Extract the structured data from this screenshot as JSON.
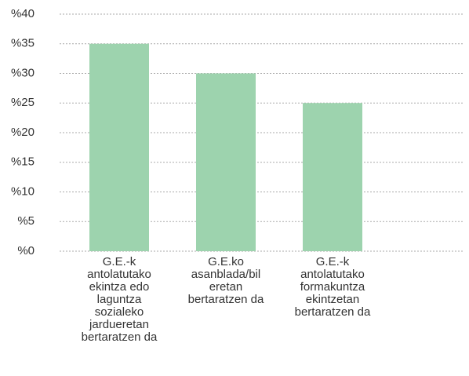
{
  "chart_data": {
    "type": "bar",
    "categories": [
      [
        "G.E.-k",
        "antolatutako",
        "ekintza edo",
        "laguntza",
        "sozialeko",
        "jardueretan",
        "bertaratzen da"
      ],
      [
        "G.E.ko",
        "asanblada/bil",
        "eretan",
        "bertaratzen da"
      ],
      [
        "G.E.-k",
        "antolatutako",
        "formakuntza",
        "ekintzetan",
        "bertaratzen da"
      ]
    ],
    "values": [
      35,
      30,
      25
    ],
    "color": "#9dd3ae",
    "ylim": [
      0,
      40
    ],
    "yticks": [
      {
        "value": 0,
        "label": "%0"
      },
      {
        "value": 5,
        "label": "%5"
      },
      {
        "value": 10,
        "label": "%10"
      },
      {
        "value": 15,
        "label": "%15"
      },
      {
        "value": 20,
        "label": "%20"
      },
      {
        "value": 25,
        "label": "%25"
      },
      {
        "value": 30,
        "label": "%30"
      },
      {
        "value": 35,
        "label": "%35"
      },
      {
        "value": 40,
        "label": "%40"
      }
    ],
    "grid": true
  }
}
